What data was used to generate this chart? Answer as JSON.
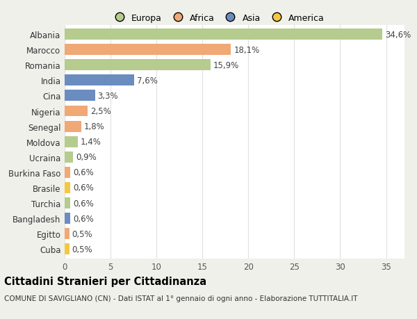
{
  "countries": [
    "Albania",
    "Marocco",
    "Romania",
    "India",
    "Cina",
    "Nigeria",
    "Senegal",
    "Moldova",
    "Ucraina",
    "Burkina Faso",
    "Brasile",
    "Turchia",
    "Bangladesh",
    "Egitto",
    "Cuba"
  ],
  "values": [
    34.6,
    18.1,
    15.9,
    7.6,
    3.3,
    2.5,
    1.8,
    1.4,
    0.9,
    0.6,
    0.6,
    0.6,
    0.6,
    0.5,
    0.5
  ],
  "labels": [
    "34,6%",
    "18,1%",
    "15,9%",
    "7,6%",
    "3,3%",
    "2,5%",
    "1,8%",
    "1,4%",
    "0,9%",
    "0,6%",
    "0,6%",
    "0,6%",
    "0,6%",
    "0,5%",
    "0,5%"
  ],
  "continents": [
    "Europa",
    "Africa",
    "Europa",
    "Asia",
    "Asia",
    "Africa",
    "Africa",
    "Europa",
    "Europa",
    "Africa",
    "America",
    "Europa",
    "Asia",
    "Africa",
    "America"
  ],
  "continent_colors": {
    "Europa": "#b5cc8e",
    "Africa": "#f0a875",
    "Asia": "#6b8cbf",
    "America": "#f5c842"
  },
  "legend_order": [
    "Europa",
    "Africa",
    "Asia",
    "America"
  ],
  "legend_colors": [
    "#b5cc8e",
    "#f0a875",
    "#6b8cbf",
    "#f5c842"
  ],
  "title": "Cittadini Stranieri per Cittadinanza",
  "subtitle": "COMUNE DI SAVIGLIANO (CN) - Dati ISTAT al 1° gennaio di ogni anno - Elaborazione TUTTITALIA.IT",
  "xlim": [
    0,
    37
  ],
  "xticks": [
    0,
    5,
    10,
    15,
    20,
    25,
    30,
    35
  ],
  "background_color": "#f0f0eb",
  "plot_bg_color": "#ffffff",
  "grid_color": "#e0e0e0",
  "bar_height": 0.72,
  "label_fontsize": 8.5,
  "tick_fontsize": 8.5,
  "title_fontsize": 10.5,
  "subtitle_fontsize": 7.5
}
